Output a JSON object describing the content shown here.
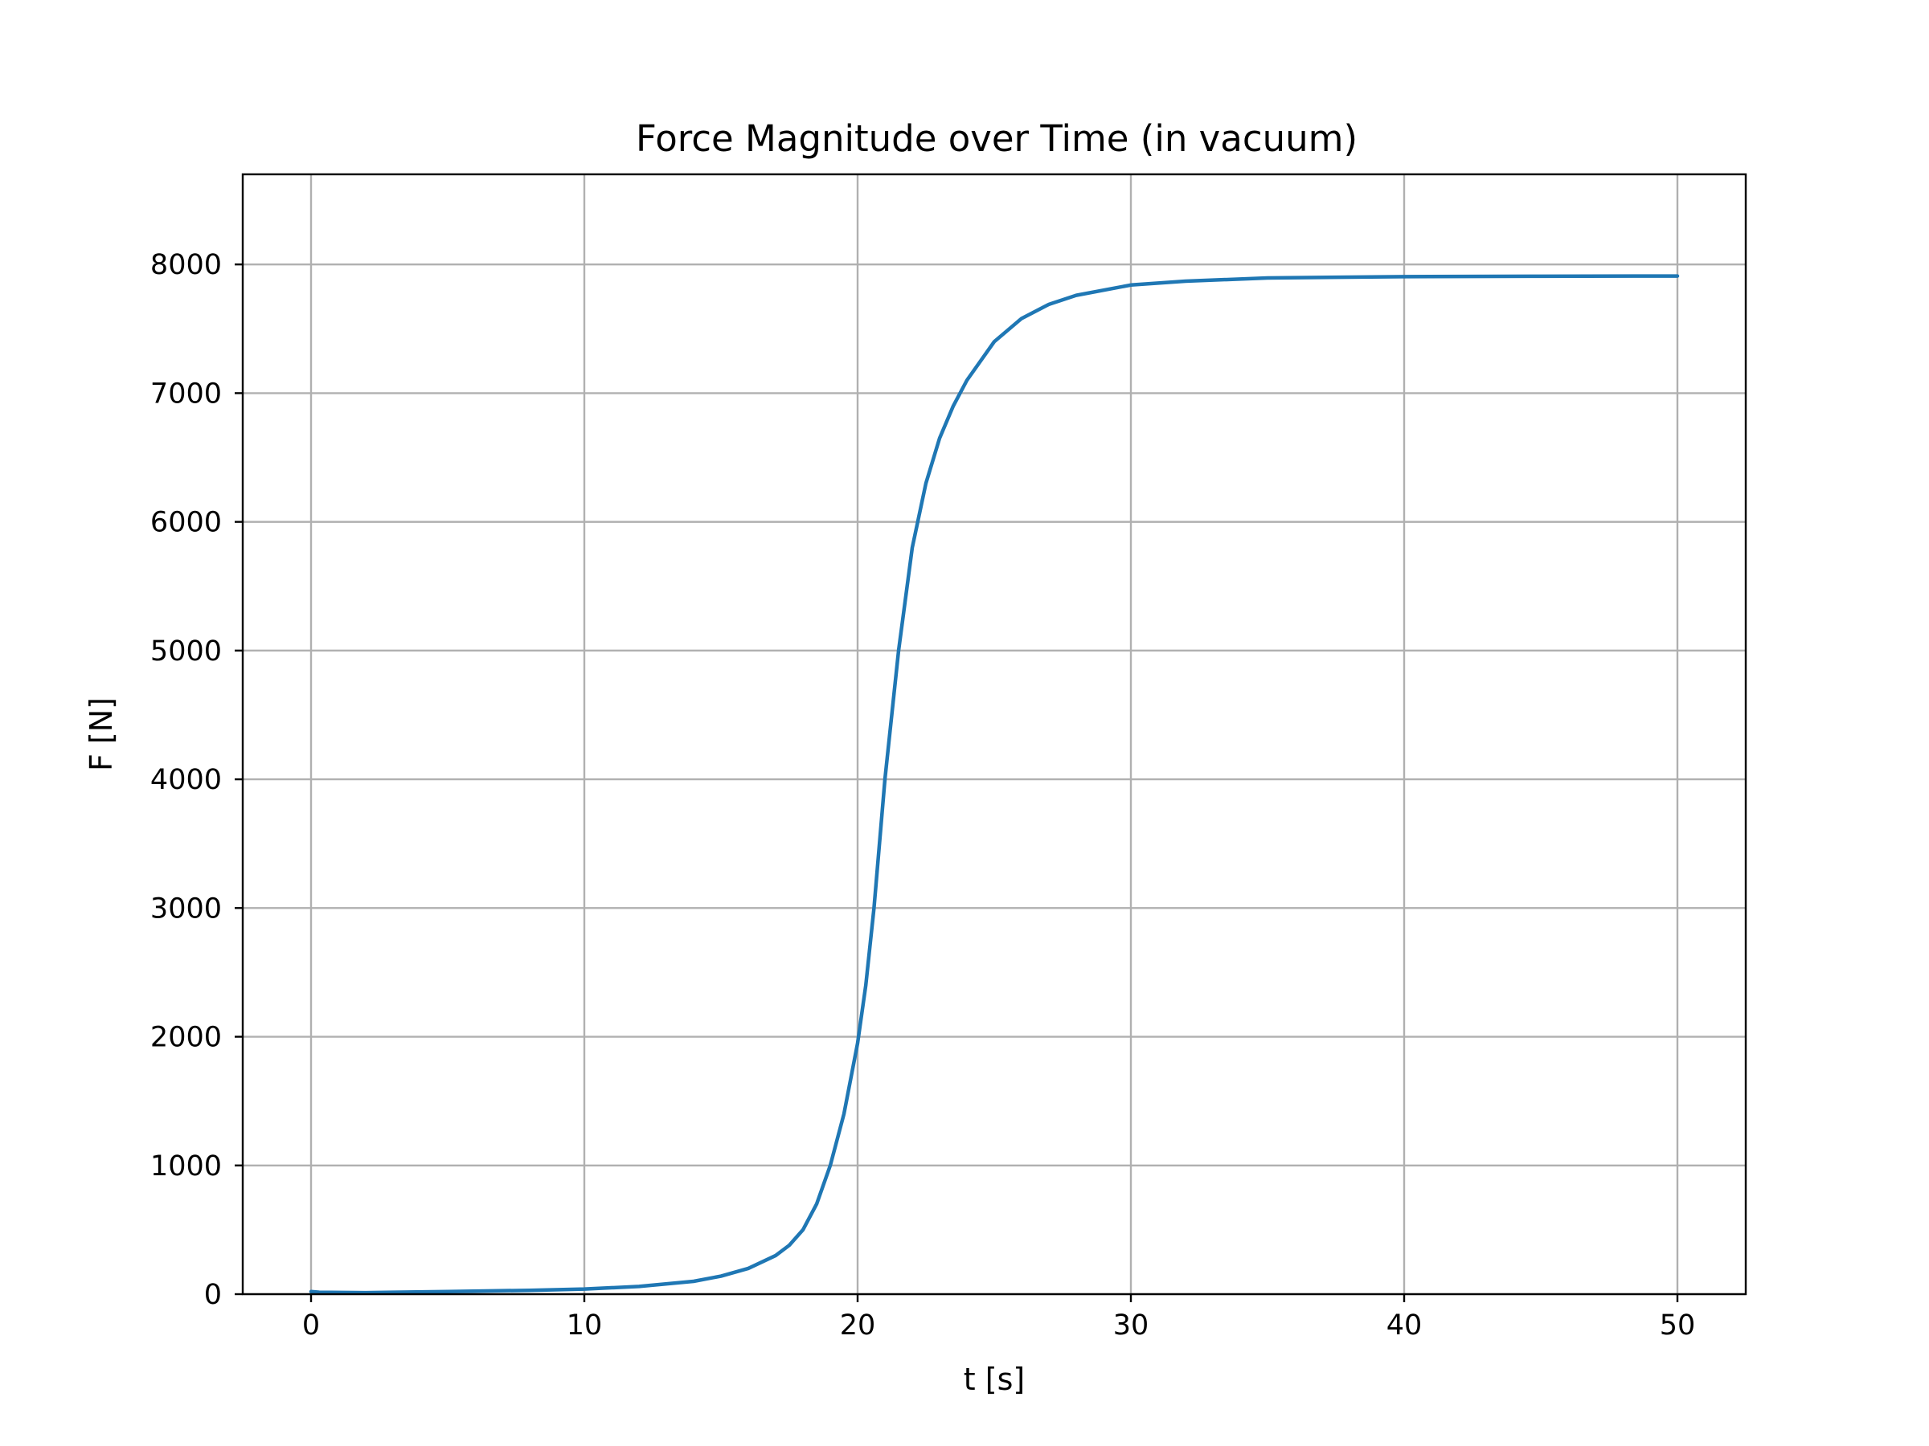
{
  "chart_data": {
    "type": "line",
    "title": "Force Magnitude over Time (in vacuum)",
    "xlabel": "t [s]",
    "ylabel": "F [N]",
    "xlim": [
      -2.5,
      52.5
    ],
    "ylim": [
      0,
      8700
    ],
    "grid": true,
    "x_ticks": [
      0,
      10,
      20,
      30,
      40,
      50
    ],
    "y_ticks": [
      0,
      1000,
      2000,
      3000,
      4000,
      5000,
      6000,
      7000,
      8000
    ],
    "x_tick_labels": [
      "0",
      "10",
      "20",
      "30",
      "40",
      "50"
    ],
    "y_tick_labels": [
      "0",
      "1000",
      "2000",
      "3000",
      "4000",
      "5000",
      "6000",
      "7000",
      "8000"
    ],
    "series": [
      {
        "name": "F",
        "color": "#1f77b4",
        "x": [
          0,
          0.3,
          2,
          3,
          5,
          8,
          10,
          12,
          14,
          15,
          16,
          17,
          17.5,
          18,
          18.5,
          19,
          19.5,
          20,
          20.3,
          20.6,
          21,
          21.5,
          22,
          22.5,
          23,
          23.5,
          24,
          25,
          26,
          27,
          28,
          30,
          32,
          35,
          40,
          45,
          50
        ],
        "y": [
          20,
          15,
          12,
          15,
          20,
          30,
          40,
          60,
          100,
          140,
          200,
          300,
          380,
          500,
          700,
          1000,
          1400,
          1950,
          2400,
          3000,
          4000,
          5000,
          5800,
          6300,
          6650,
          6900,
          7100,
          7400,
          7580,
          7690,
          7760,
          7840,
          7870,
          7895,
          7905,
          7908,
          7910
        ]
      }
    ]
  }
}
